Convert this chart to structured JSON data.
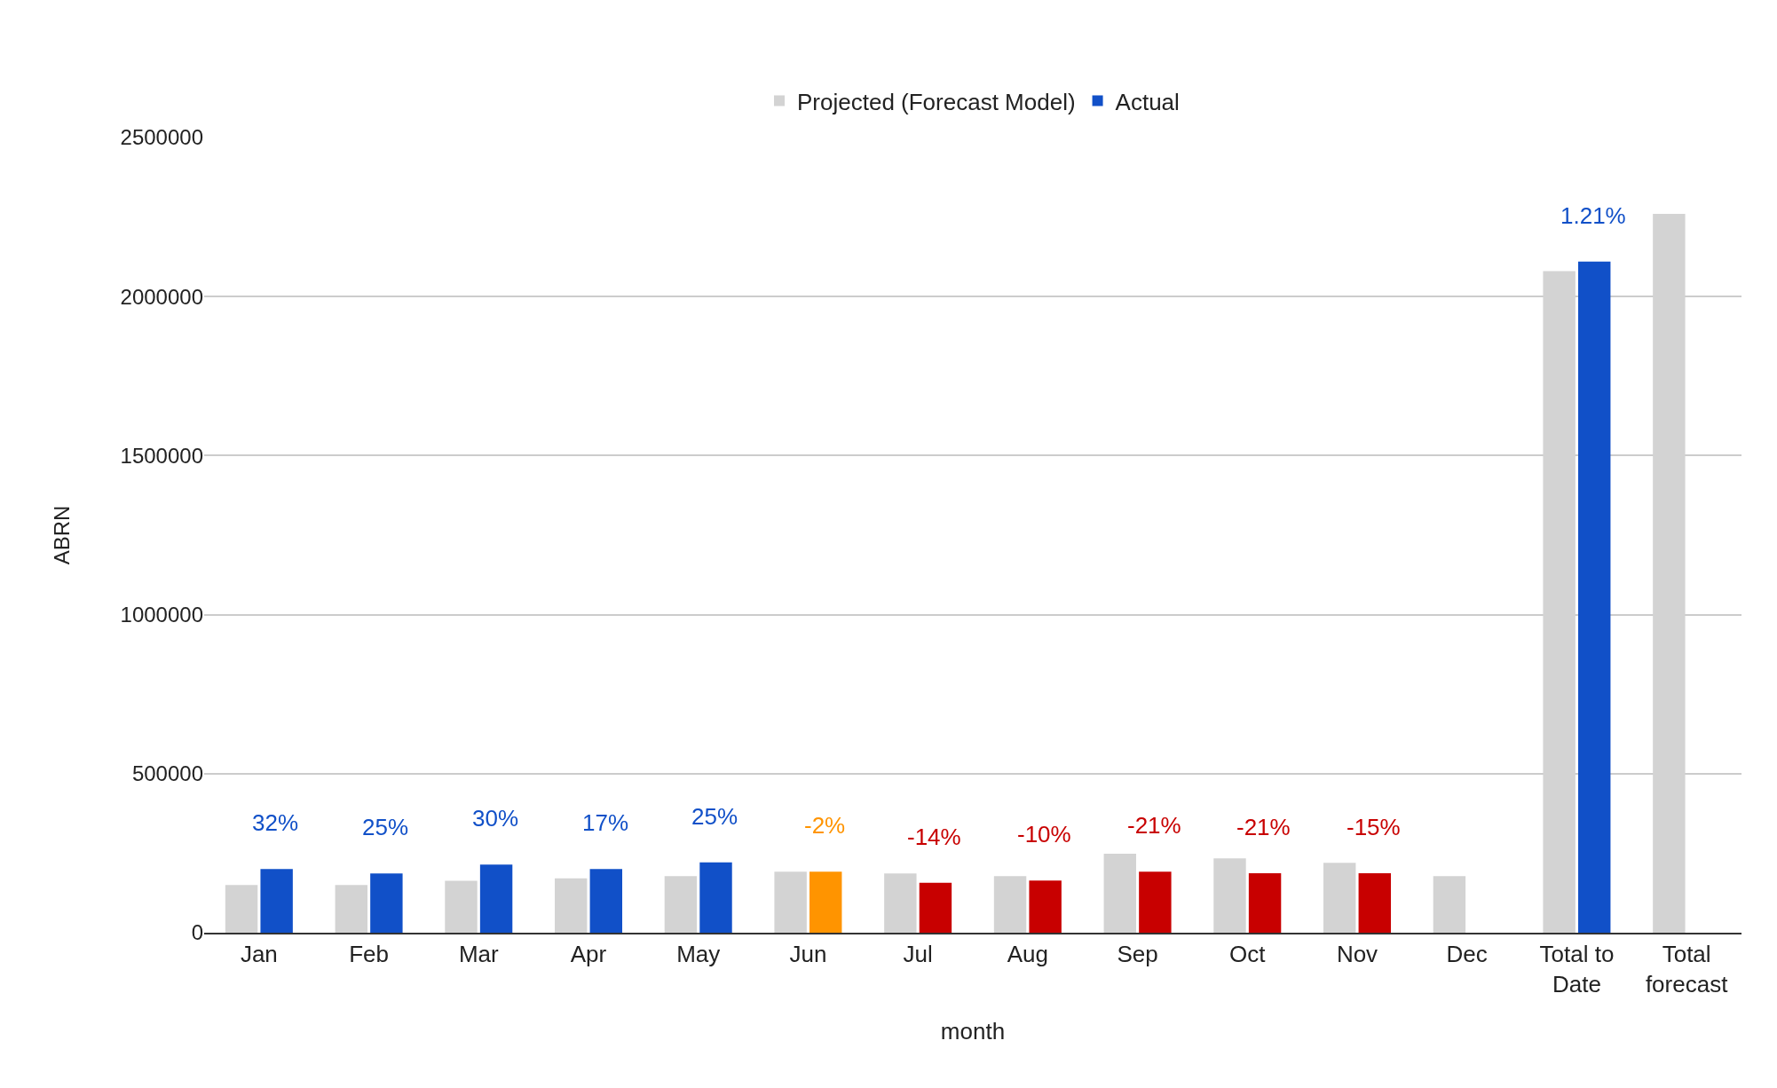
{
  "chart_data": {
    "type": "bar",
    "xlabel": "month",
    "ylabel": "ABRN",
    "categories": [
      "Jan",
      "Feb",
      "Mar",
      "Apr",
      "May",
      "Jun",
      "Jul",
      "Aug",
      "Sep",
      "Oct",
      "Nov",
      "Dec",
      "Total to Date",
      "Total forecast"
    ],
    "series": [
      {
        "name": "Projected (Forecast Model)",
        "color": "#d3d3d3",
        "values": [
          150000,
          150000,
          163000,
          171000,
          178000,
          192000,
          186000,
          178000,
          248000,
          234000,
          220000,
          178000,
          2080000,
          2260000
        ]
      },
      {
        "name": "Actual",
        "color": "#1150c8",
        "colors": [
          "#1150c8",
          "#1150c8",
          "#1150c8",
          "#1150c8",
          "#1150c8",
          "#ff9400",
          "#c80000",
          "#c80000",
          "#c80000",
          "#c80000",
          "#c80000",
          null,
          "#1150c8",
          null
        ],
        "values": [
          200000,
          186000,
          214000,
          200000,
          221000,
          192000,
          157000,
          164000,
          192000,
          187000,
          187000,
          null,
          2110000,
          null
        ]
      }
    ],
    "annotations": [
      {
        "text": "32%",
        "x": "Jan",
        "y": 200000
      },
      {
        "text": "25%",
        "x": "Feb",
        "y": 186000
      },
      {
        "text": "30%",
        "x": "Mar",
        "y": 214000
      },
      {
        "text": "17%",
        "x": "Apr",
        "y": 200000
      },
      {
        "text": "25%",
        "x": "May",
        "y": 221000
      },
      {
        "text": "-2%",
        "x": "Jun",
        "y": 192000
      },
      {
        "text": "-14%",
        "x": "Jul",
        "y": 157000
      },
      {
        "text": "-10%",
        "x": "Aug",
        "y": 164000
      },
      {
        "text": "-21%",
        "x": "Sep",
        "y": 192000
      },
      {
        "text": "-21%",
        "x": "Oct",
        "y": 187000
      },
      {
        "text": "-15%",
        "x": "Nov",
        "y": 187000
      },
      {
        "text": "1.21%",
        "x": "Total to Date",
        "y": 2110000
      }
    ],
    "ylim": [
      0,
      2500000
    ],
    "yticks": [
      0,
      500000,
      1000000,
      1500000,
      2000000,
      2500000
    ],
    "grid": "y",
    "legend": "top"
  }
}
